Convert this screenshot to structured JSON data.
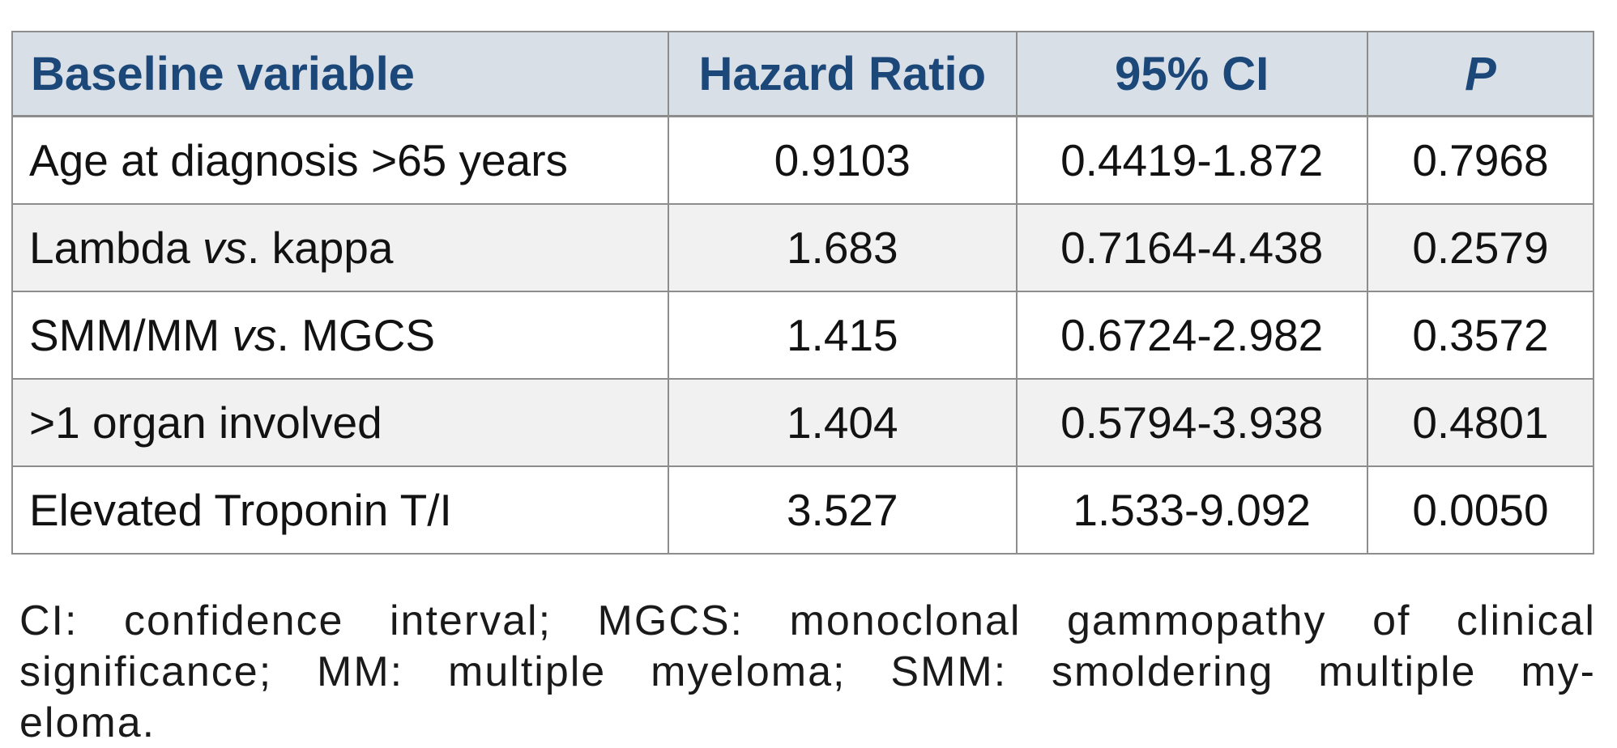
{
  "table": {
    "headers": [
      "Baseline variable",
      "Hazard Ratio",
      "95% CI",
      "P"
    ],
    "rows": [
      {
        "label_before": "Age at diagnosis >65 years",
        "label_italic": "",
        "label_after": "",
        "hazard_ratio": "0.9103",
        "ci": "0.4419-1.872",
        "p": "0.7968"
      },
      {
        "label_before": "Lambda ",
        "label_italic": "vs",
        "label_after": ". kappa",
        "hazard_ratio": "1.683",
        "ci": "0.7164-4.438",
        "p": "0.2579"
      },
      {
        "label_before": "SMM/MM ",
        "label_italic": "vs",
        "label_after": ". MGCS",
        "hazard_ratio": "1.415",
        "ci": "0.6724-2.982",
        "p": "0.3572"
      },
      {
        "label_before": ">1 organ involved",
        "label_italic": "",
        "label_after": "",
        "hazard_ratio": "1.404",
        "ci": "0.5794-3.938",
        "p": "0.4801"
      },
      {
        "label_before": "Elevated Troponin T/I",
        "label_italic": "",
        "label_after": "",
        "hazard_ratio": "3.527",
        "ci": "1.533-9.092",
        "p": "0.0050"
      }
    ]
  },
  "footnote": {
    "lines": [
      "CI: confidence interval; MGCS: monoclonal gammopathy of clinical",
      "significance; MM: multiple myeloma; SMM: smoldering multiple my-",
      "eloma."
    ]
  },
  "colors": {
    "header_background": "#d8dfe7",
    "header_text": "#1b4779",
    "border": "#8d8d8d",
    "alt_row_background": "#f1f1f1",
    "body_text": "#121212"
  }
}
